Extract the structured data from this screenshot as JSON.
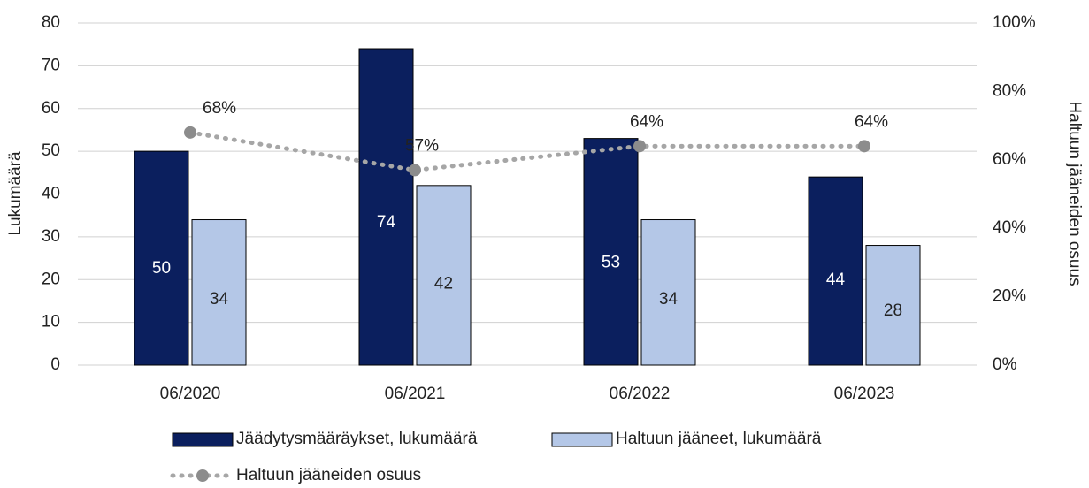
{
  "chart_data": {
    "type": "bar-line",
    "categories": [
      "06/2020",
      "06/2021",
      "06/2022",
      "06/2023"
    ],
    "series": [
      {
        "name": "Jäädytysmääräykset, lukumäärä",
        "color": "#0b1f5e",
        "values": [
          50,
          74,
          53,
          44
        ]
      },
      {
        "name": "Haltuun jääneet, lukumäärä",
        "color": "#b4c7e7",
        "values": [
          34,
          42,
          34,
          28
        ]
      },
      {
        "name": "Haltuun jääneiden osuus",
        "color": "#8c8c8c",
        "axis": "y2",
        "values": [
          68,
          57,
          64,
          64
        ],
        "value_labels": [
          "68%",
          "57%",
          "64%",
          "64%"
        ]
      }
    ],
    "ylabel": "Lukumäärä",
    "y2label": "Haltuun jääneiden osuus",
    "ylim": [
      0,
      80
    ],
    "yticks": [
      0,
      10,
      20,
      30,
      40,
      50,
      60,
      70,
      80
    ],
    "y2lim": [
      0,
      100
    ],
    "y2ticks": [
      {
        "value": 0,
        "label": "0%"
      },
      {
        "value": 20,
        "label": "20%"
      },
      {
        "value": 40,
        "label": "40%"
      },
      {
        "value": 60,
        "label": "60%"
      },
      {
        "value": 80,
        "label": "80%"
      },
      {
        "value": 100,
        "label": "100%"
      }
    ],
    "grid": true,
    "legend": "bottom"
  }
}
